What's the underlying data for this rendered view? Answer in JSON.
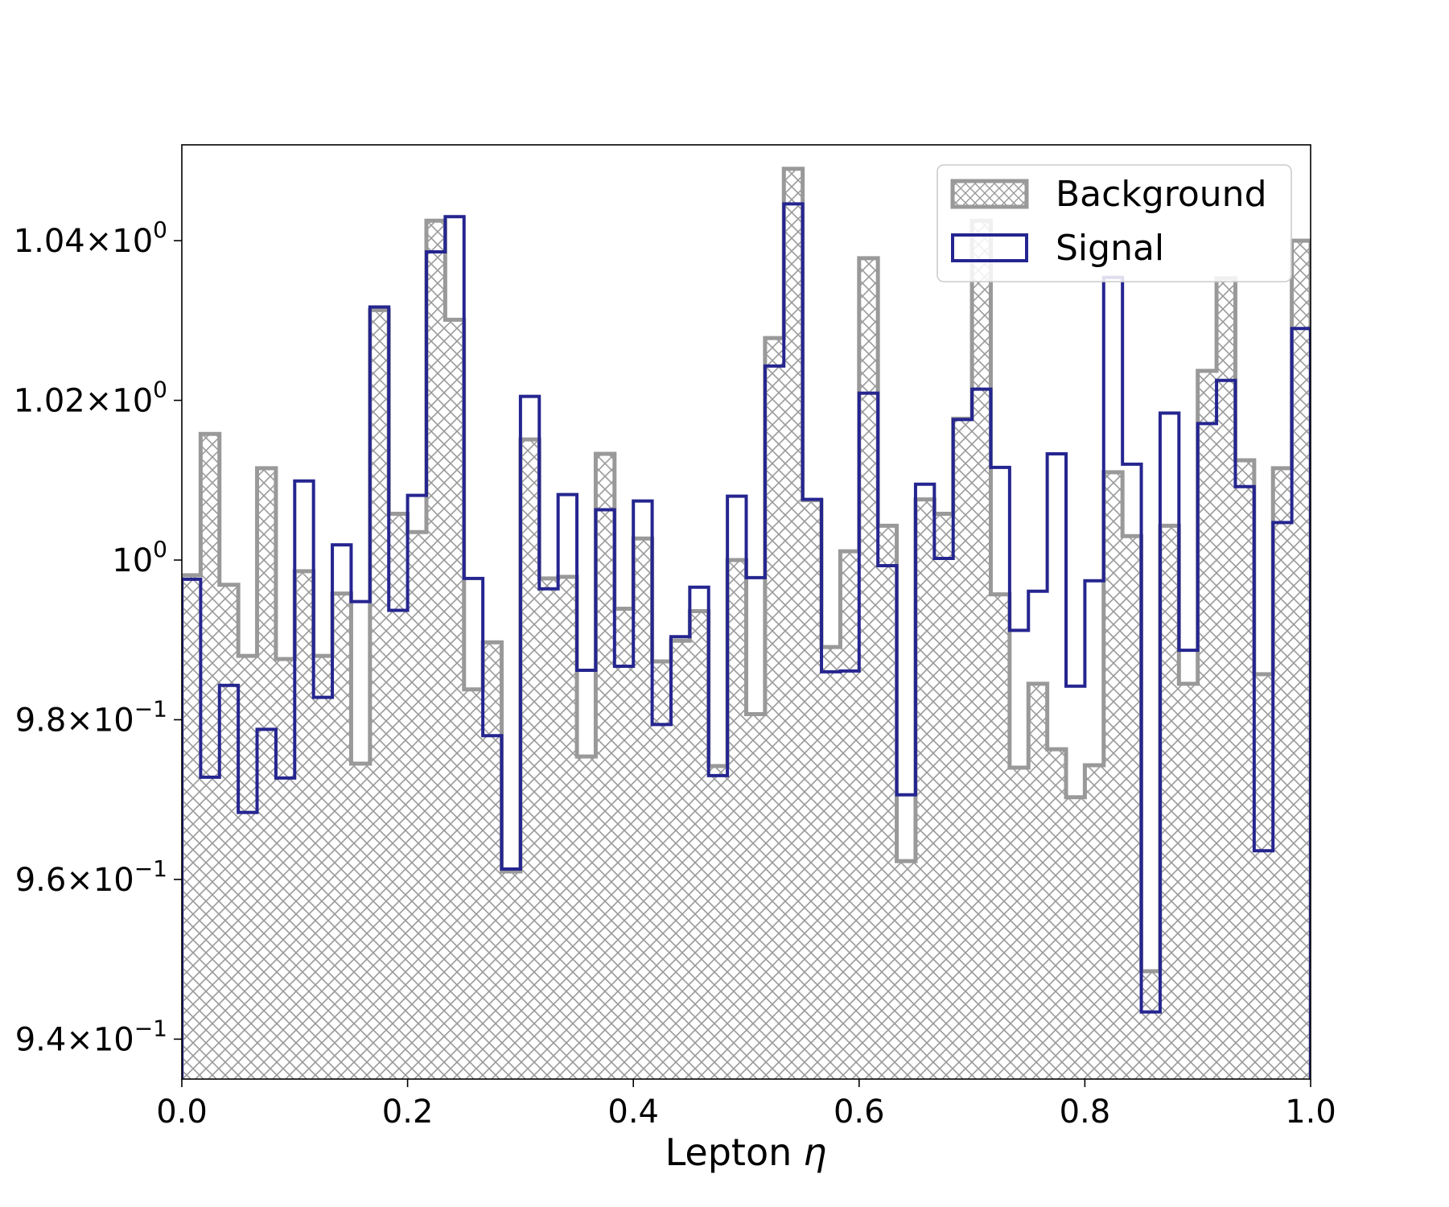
{
  "chart_data": {
    "type": "histogram",
    "xlabel": "Lepton",
    "xlabel_symbol": "η",
    "ylabel": "",
    "xlim": [
      0.0,
      1.0
    ],
    "ylim": [
      0.935,
      1.052
    ],
    "x_ticks": [
      0.0,
      0.2,
      0.4,
      0.6,
      0.8,
      1.0
    ],
    "x_tick_labels": [
      "0.0",
      "0.2",
      "0.4",
      "0.6",
      "0.8",
      "1.0"
    ],
    "y_ticks": [
      0.94,
      0.96,
      0.98,
      1.0,
      1.02,
      1.04
    ],
    "y_tick_labels": [
      {
        "mant": "9.4",
        "exp": "−1"
      },
      {
        "mant": "9.6",
        "exp": "−1"
      },
      {
        "mant": "9.8",
        "exp": "−1"
      },
      {
        "mant": "1",
        "exp": "0"
      },
      {
        "mant": "1.02",
        "exp": "0"
      },
      {
        "mant": "1.04",
        "exp": "0"
      }
    ],
    "grid": false,
    "legend_position": "top-right",
    "bins": 60,
    "bin_range": [
      0.0,
      1.0
    ],
    "series": [
      {
        "name": "Background",
        "style": "hatched-filled",
        "color": "#999999",
        "values": [
          0.9981,
          1.0158,
          0.9969,
          0.988,
          1.0115,
          0.9876,
          0.9986,
          0.988,
          0.9958,
          0.9745,
          1.0313,
          1.0058,
          1.0035,
          1.0425,
          1.0301,
          0.9838,
          0.9897,
          0.961,
          1.0151,
          0.9977,
          0.9979,
          0.9754,
          1.0133,
          0.9939,
          1.0027,
          0.9873,
          0.9899,
          0.9936,
          0.9742,
          1.0,
          0.9807,
          1.0278,
          1.049,
          1.0075,
          0.9891,
          1.0011,
          1.0378,
          1.0043,
          0.9623,
          1.0076,
          1.0058,
          1.0177,
          1.0425,
          0.9957,
          0.974,
          0.9845,
          0.9763,
          0.9703,
          0.9743,
          1.011,
          1.003,
          0.9485,
          1.0043,
          0.9845,
          1.0237,
          1.0353,
          1.0125,
          0.9857,
          1.0115,
          1.04
        ]
      },
      {
        "name": "Signal",
        "style": "step",
        "color": "#252590",
        "values": [
          0.9976,
          0.9728,
          0.9843,
          0.9684,
          0.9788,
          0.9727,
          1.0099,
          0.9828,
          1.0019,
          0.9948,
          1.0317,
          0.9937,
          1.0081,
          1.0386,
          1.043,
          0.9977,
          0.978,
          0.9613,
          1.0205,
          0.9964,
          1.0082,
          0.9862,
          1.0063,
          0.9867,
          1.0074,
          0.9794,
          0.9904,
          0.9966,
          0.973,
          1.008,
          0.9978,
          1.0243,
          1.0446,
          1.0076,
          0.986,
          0.9861,
          1.0209,
          0.9993,
          0.9706,
          1.0095,
          1.0002,
          1.0176,
          1.0214,
          1.0116,
          0.9912,
          0.9961,
          1.0133,
          0.9842,
          0.9974,
          1.0354,
          1.012,
          0.9434,
          1.0184,
          0.9887,
          1.0171,
          1.0225,
          1.0092,
          0.9636,
          1.0047,
          1.029
        ]
      }
    ]
  }
}
